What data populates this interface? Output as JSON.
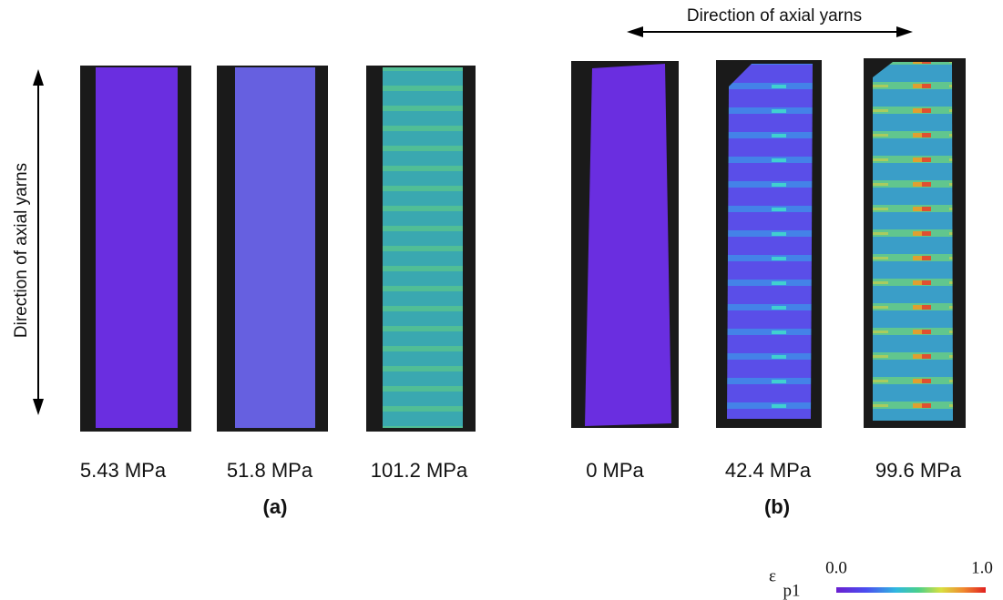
{
  "panel_a": {
    "direction_label": "Direction of axial yarns",
    "specimens": [
      "5.43 MPa",
      "51.8 MPa",
      "101.2 MPa"
    ],
    "caption": "(a)"
  },
  "panel_b": {
    "direction_label": "Direction of axial yarns",
    "specimens": [
      "0 MPa",
      "42.4 MPa",
      "99.6 MPa"
    ],
    "caption": "(b)"
  },
  "colorbar": {
    "symbol": "ε",
    "subscript": "p1",
    "min_label": "0.0",
    "max_label": "1.0"
  }
}
